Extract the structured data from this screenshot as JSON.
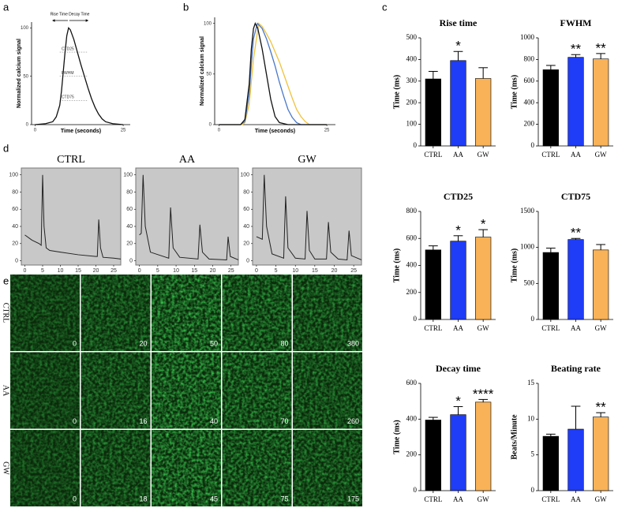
{
  "panel_labels": [
    "a",
    "b",
    "c",
    "d",
    "e"
  ],
  "chart_data": [
    {
      "type": "line",
      "ylabel": "Normalized calcium signal",
      "xlabel": "Time (seconds)",
      "x": [
        0,
        3,
        5,
        6,
        7,
        7.5,
        8,
        8.5,
        9,
        9.5,
        10,
        11,
        12,
        13,
        14,
        15,
        16,
        17,
        18,
        19,
        20,
        22,
        25
      ],
      "values": [
        0,
        1,
        3,
        8,
        20,
        35,
        55,
        75,
        92,
        100,
        98,
        88,
        75,
        62,
        50,
        38,
        27,
        18,
        11,
        6,
        3,
        1,
        0
      ],
      "color": "#111111",
      "xlim": [
        -1,
        27
      ],
      "ylim": [
        0,
        106
      ],
      "xticks": [
        0,
        25
      ],
      "yticks": [
        0,
        50,
        100
      ],
      "top_labels": [
        "Rise Time",
        "Decay Time"
      ],
      "levels": [
        {
          "label": "CTD25",
          "value": 75
        },
        {
          "label": "FWHM",
          "value": 50
        },
        {
          "label": "CTD75",
          "value": 25
        }
      ]
    },
    {
      "type": "line",
      "ylabel": "Normalized calcium signal",
      "xlabel": "Time (seconds)",
      "xlim": [
        -1,
        27
      ],
      "ylim": [
        0,
        106
      ],
      "xticks": [
        0,
        25
      ],
      "yticks": [
        0,
        50,
        100
      ],
      "series": [
        {
          "color": "#f0c23c",
          "x": [
            0,
            5.5,
            6,
            7,
            8,
            9.2,
            10,
            11,
            12,
            13,
            14,
            15,
            16,
            17,
            18,
            19,
            20,
            21,
            25
          ],
          "values": [
            0,
            0,
            2,
            20,
            65,
            100,
            97,
            90,
            82,
            72,
            62,
            50,
            38,
            26,
            15,
            8,
            3,
            0,
            0
          ]
        },
        {
          "color": "#4a78c8",
          "x": [
            0,
            5,
            6,
            7,
            7.5,
            8,
            8.9,
            10,
            11,
            12,
            13,
            14,
            15,
            16,
            17,
            18,
            19,
            25
          ],
          "values": [
            0,
            0,
            3,
            30,
            60,
            85,
            100,
            95,
            85,
            72,
            58,
            42,
            28,
            15,
            7,
            2,
            0,
            0
          ]
        },
        {
          "color": "#111111",
          "x": [
            0,
            5,
            6,
            7,
            7.5,
            8,
            8.4,
            9,
            10,
            11,
            12,
            13,
            14,
            16,
            25
          ],
          "values": [
            0,
            0,
            5,
            40,
            75,
            95,
            100,
            95,
            75,
            50,
            25,
            8,
            2,
            0,
            0
          ]
        }
      ]
    },
    {
      "type": "bar",
      "title": "Rise time",
      "ylabel": "Time (ms)",
      "categories": [
        "CTRL",
        "AA",
        "GW"
      ],
      "colors": [
        "#000000",
        "#1f3cf6",
        "#f9b257"
      ],
      "values": [
        310,
        395,
        312
      ],
      "errors": [
        35,
        42,
        50
      ],
      "significance": [
        null,
        "*",
        null
      ],
      "ylim": [
        0,
        500
      ],
      "yticks": [
        0,
        100,
        200,
        300,
        400,
        500
      ]
    },
    {
      "type": "bar",
      "title": "FWHM",
      "ylabel": "Time (ms)",
      "categories": [
        "CTRL",
        "AA",
        "GW"
      ],
      "colors": [
        "#000000",
        "#1f3cf6",
        "#f9b257"
      ],
      "values": [
        705,
        820,
        805
      ],
      "errors": [
        40,
        25,
        50
      ],
      "significance": [
        null,
        "**",
        "**"
      ],
      "ylim": [
        0,
        1000
      ],
      "yticks": [
        0,
        200,
        400,
        600,
        800,
        1000
      ]
    },
    {
      "type": "bar",
      "title": "CTD25",
      "ylabel": "Time (ms)",
      "categories": [
        "CTRL",
        "AA",
        "GW"
      ],
      "colors": [
        "#000000",
        "#1f3cf6",
        "#f9b257"
      ],
      "values": [
        515,
        580,
        610
      ],
      "errors": [
        30,
        40,
        55
      ],
      "significance": [
        null,
        "*",
        "*"
      ],
      "ylim": [
        0,
        800
      ],
      "yticks": [
        0,
        200,
        400,
        600,
        800
      ]
    },
    {
      "type": "bar",
      "title": "CTD75",
      "ylabel": "Time (ms)",
      "categories": [
        "CTRL",
        "AA",
        "GW"
      ],
      "colors": [
        "#000000",
        "#1f3cf6",
        "#f9b257"
      ],
      "values": [
        930,
        1110,
        965
      ],
      "errors": [
        60,
        15,
        75
      ],
      "significance": [
        null,
        "**",
        null
      ],
      "ylim": [
        0,
        1500
      ],
      "yticks": [
        0,
        500,
        1000,
        1500
      ]
    },
    {
      "type": "bar",
      "title": "Decay time",
      "ylabel": "Time (ms)",
      "categories": [
        "CTRL",
        "AA",
        "GW"
      ],
      "colors": [
        "#000000",
        "#1f3cf6",
        "#f9b257"
      ],
      "values": [
        395,
        425,
        495
      ],
      "errors": [
        15,
        45,
        15
      ],
      "significance": [
        null,
        "*",
        "****"
      ],
      "ylim": [
        0,
        600
      ],
      "yticks": [
        0,
        200,
        400,
        600
      ]
    },
    {
      "type": "bar",
      "title": "Beating rate",
      "ylabel": "Beats/Minute",
      "categories": [
        "CTRL",
        "AA",
        "GW"
      ],
      "colors": [
        "#000000",
        "#1f3cf6",
        "#f9b257"
      ],
      "values": [
        7.6,
        8.6,
        10.3
      ],
      "errors": [
        0.3,
        3.2,
        0.6
      ],
      "significance": [
        null,
        null,
        "**"
      ],
      "ylim": [
        0,
        15
      ],
      "yticks": [
        0,
        5,
        10,
        15
      ]
    },
    {
      "type": "line",
      "title": "CTRL",
      "background": "#c8c8c8",
      "color": "#222222",
      "xlim": [
        -1,
        27
      ],
      "ylim": [
        -5,
        108
      ],
      "xticks": [
        0,
        5,
        10,
        15,
        20,
        25
      ],
      "yticks": [
        0,
        20,
        40,
        60,
        80,
        100
      ],
      "x": [
        0,
        2,
        4,
        4.6,
        5,
        5.4,
        6,
        7,
        10,
        15,
        20,
        20.4,
        20.8,
        21.3,
        22,
        25,
        27
      ],
      "values": [
        30,
        24,
        20,
        18,
        100,
        40,
        15,
        12,
        10,
        7,
        5,
        5,
        48,
        15,
        4,
        3,
        2
      ]
    },
    {
      "type": "line",
      "title": "AA",
      "background": "#c8c8c8",
      "color": "#222222",
      "xlim": [
        -1,
        27
      ],
      "ylim": [
        -5,
        108
      ],
      "xticks": [
        0,
        5,
        10,
        15,
        20,
        25
      ],
      "yticks": [
        0,
        20,
        40,
        60,
        80,
        100
      ],
      "x": [
        0,
        0.5,
        1,
        1.6,
        3,
        8,
        8.5,
        9.2,
        11,
        16,
        16.5,
        17.2,
        19,
        23.8,
        24.2,
        24.8,
        27
      ],
      "values": [
        30,
        32,
        100,
        40,
        10,
        3,
        62,
        15,
        4,
        2,
        42,
        10,
        2,
        1,
        28,
        5,
        1
      ]
    },
    {
      "type": "line",
      "title": "GW",
      "background": "#c8c8c8",
      "color": "#222222",
      "xlim": [
        -1,
        27
      ],
      "ylim": [
        -5,
        108
      ],
      "xticks": [
        0,
        5,
        10,
        15,
        20,
        25
      ],
      "yticks": [
        0,
        20,
        40,
        60,
        80,
        100
      ],
      "x": [
        0,
        1.5,
        2,
        2.6,
        4,
        7,
        7.5,
        8.1,
        10,
        12.5,
        13,
        13.6,
        15,
        18,
        18.5,
        19.1,
        21,
        23.3,
        23.8,
        24.4,
        27
      ],
      "values": [
        28,
        25,
        100,
        40,
        8,
        3,
        75,
        15,
        3,
        2,
        58,
        12,
        2,
        2,
        45,
        10,
        2,
        1,
        35,
        6,
        1
      ]
    }
  ],
  "image_grid": {
    "rows": [
      {
        "label": "CTRL",
        "frames": [
          0,
          20,
          50,
          80,
          380
        ]
      },
      {
        "label": "AA",
        "frames": [
          0,
          16,
          40,
          70,
          260
        ]
      },
      {
        "label": "GW",
        "frames": [
          0,
          18,
          45,
          75,
          175
        ]
      }
    ]
  }
}
